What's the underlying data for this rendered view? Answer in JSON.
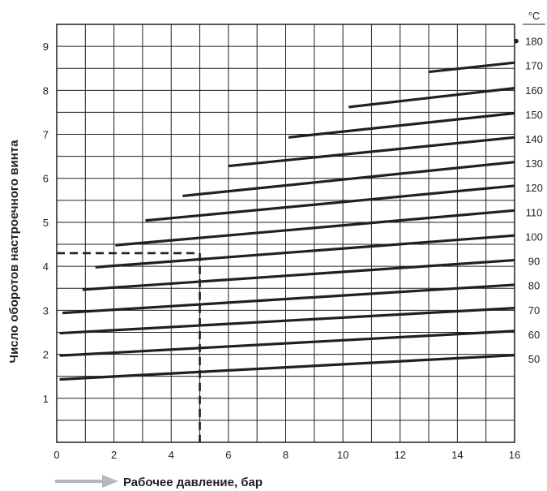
{
  "chart_data": {
    "type": "line",
    "title": "",
    "xlabel": "Рабочее давление, бар",
    "ylabel": "Число оборотов настроечного винта",
    "unit_right": "°C",
    "xlim": [
      0,
      16
    ],
    "ylim": [
      0,
      9.5
    ],
    "x_ticks": [
      0,
      2,
      4,
      6,
      8,
      10,
      12,
      14,
      16
    ],
    "y_ticks": [
      1,
      2,
      3,
      4,
      5,
      6,
      7,
      8,
      9
    ],
    "temp_ticks": [
      50,
      60,
      70,
      80,
      90,
      100,
      110,
      120,
      130,
      140,
      150,
      160,
      170,
      180
    ],
    "grid": true,
    "series": [
      {
        "temp": 50,
        "x": [
          0.1,
          16.0
        ],
        "y": [
          1.43,
          1.98
        ]
      },
      {
        "temp": 60,
        "x": [
          0.1,
          16.0
        ],
        "y": [
          1.97,
          2.53
        ]
      },
      {
        "temp": 70,
        "x": [
          0.1,
          16.0
        ],
        "y": [
          2.48,
          3.05
        ]
      },
      {
        "temp": 80,
        "x": [
          0.2,
          16.0
        ],
        "y": [
          2.94,
          3.58
        ]
      },
      {
        "temp": 90,
        "x": [
          0.9,
          16.0
        ],
        "y": [
          3.47,
          4.14
        ]
      },
      {
        "temp": 100,
        "x": [
          1.35,
          16.0
        ],
        "y": [
          3.98,
          4.7
        ]
      },
      {
        "temp": 110,
        "x": [
          2.05,
          16.0
        ],
        "y": [
          4.48,
          5.27
        ]
      },
      {
        "temp": 120,
        "x": [
          3.1,
          16.0
        ],
        "y": [
          5.04,
          5.83
        ]
      },
      {
        "temp": 130,
        "x": [
          4.4,
          16.0
        ],
        "y": [
          5.6,
          6.37
        ]
      },
      {
        "temp": 140,
        "x": [
          6.0,
          16.0
        ],
        "y": [
          6.28,
          6.93
        ]
      },
      {
        "temp": 150,
        "x": [
          8.1,
          16.0
        ],
        "y": [
          6.93,
          7.48
        ]
      },
      {
        "temp": 160,
        "x": [
          10.2,
          16.0
        ],
        "y": [
          7.62,
          8.05
        ]
      },
      {
        "temp": 170,
        "x": [
          13.0,
          16.0
        ],
        "y": [
          8.42,
          8.63
        ]
      }
    ],
    "example": {
      "x": 5,
      "y": 4.3
    },
    "marker_180": {
      "x": 16,
      "y": 9.12
    }
  }
}
